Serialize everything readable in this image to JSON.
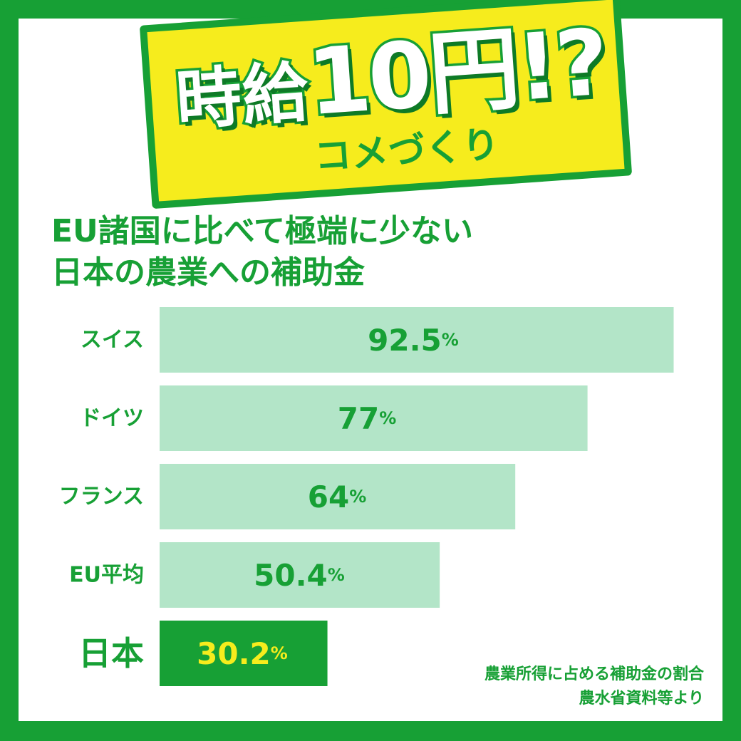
{
  "banner": {
    "title_prefix": "時給",
    "title_number": "10円!?",
    "subtitle": "コメづくり"
  },
  "headline": {
    "line1": "EU諸国に比べて極端に少ない",
    "line2": "日本の農業への補助金"
  },
  "colors": {
    "frame_green": "#17a035",
    "banner_yellow": "#f6ec1d",
    "bar_light": "#b3e5c8",
    "bar_highlight": "#17a035",
    "value_text": "#17a035",
    "value_text_highlight": "#f6ec1d"
  },
  "chart_data": {
    "type": "bar",
    "orientation": "horizontal",
    "categories": [
      "スイス",
      "ドイツ",
      "フランス",
      "EU平均",
      "日本"
    ],
    "values": [
      92.5,
      77,
      64,
      50.4,
      30.2
    ],
    "value_labels": [
      "92.5",
      "77",
      "64",
      "50.4",
      "30.2"
    ],
    "unit": "%",
    "highlight_category": "日本",
    "title": "EU諸国に比べて極端に少ない 日本の農業への補助金",
    "xlim": [
      0,
      100
    ]
  },
  "source": {
    "line1": "農業所得に占める補助金の割合",
    "line2": "農水省資料等より"
  }
}
